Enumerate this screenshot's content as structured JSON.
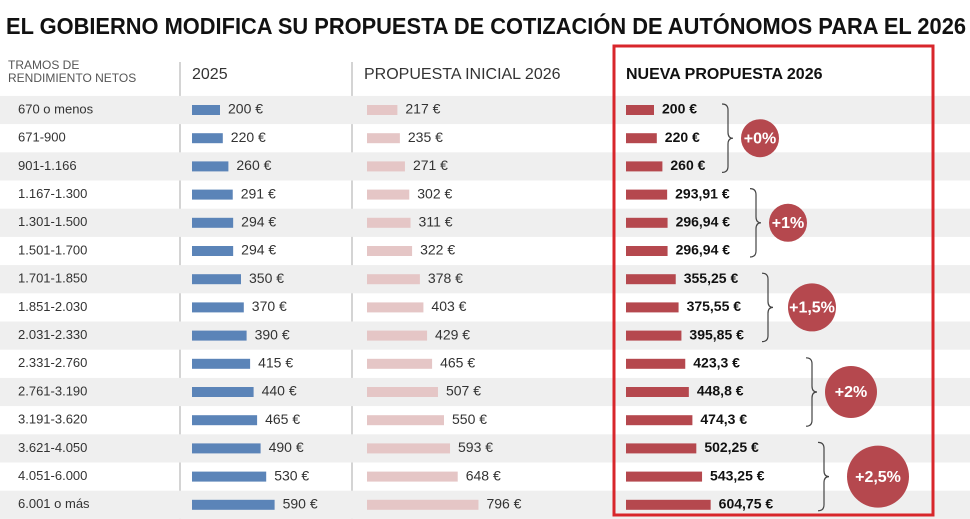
{
  "chart_data": {
    "type": "bar",
    "title": "EL GOBIERNO MODIFICA SU PROPUESTA DE COTIZACIÓN DE AUTÓNOMOS PARA EL 2026",
    "category_header": [
      "TRAMOS DE",
      "RENDIMIENTO NETOS"
    ],
    "categories": [
      "670 o menos",
      "671-900",
      "901-1.166",
      "1.167-1.300",
      "1.301-1.500",
      "1.501-1.700",
      "1.701-1.850",
      "1.851-2.030",
      "2.031-2.330",
      "2.331-2.760",
      "2.761-3.190",
      "3.191-3.620",
      "3.621-4.050",
      "4.051-6.000",
      "6.001 o más"
    ],
    "series": [
      {
        "name": "2025",
        "color": "#5b84b8",
        "values": [
          200,
          220,
          260,
          291,
          294,
          294,
          350,
          370,
          390,
          415,
          440,
          465,
          490,
          530,
          590
        ],
        "value_labels": [
          "200 €",
          "220 €",
          "260 €",
          "291 €",
          "294 €",
          "294 €",
          "350 €",
          "370 €",
          "390 €",
          "415 €",
          "440 €",
          "465 €",
          "490 €",
          "530 €",
          "590 €"
        ]
      },
      {
        "name": "PROPUESTA INICIAL 2026",
        "color": "#e5c6c6",
        "values": [
          217,
          235,
          271,
          302,
          311,
          322,
          378,
          403,
          429,
          465,
          507,
          550,
          593,
          648,
          796
        ],
        "value_labels": [
          "217 €",
          "235 €",
          "271 €",
          "302 €",
          "311 €",
          "322 €",
          "378 €",
          "403 €",
          "429 €",
          "465 €",
          "507 €",
          "550 €",
          "593 €",
          "648 €",
          "796 €"
        ]
      },
      {
        "name": "NUEVA PROPUESTA 2026",
        "color": "#b5484e",
        "values": [
          200,
          220,
          260,
          293.91,
          296.94,
          296.94,
          355.25,
          375.55,
          395.85,
          423.3,
          448.8,
          474.3,
          502.25,
          543.25,
          604.75
        ],
        "value_labels": [
          "200 €",
          "220 €",
          "260 €",
          "293,91 €",
          "296,94 €",
          "296,94 €",
          "355,25 €",
          "375,55 €",
          "395,85 €",
          "423,3 €",
          "448,8 €",
          "474,3 €",
          "502,25 €",
          "543,25 €",
          "604,75 €"
        ]
      }
    ],
    "annotations": [
      "+0%",
      "+1%",
      "+1,5%",
      "+2%",
      "+2,5%"
    ]
  }
}
